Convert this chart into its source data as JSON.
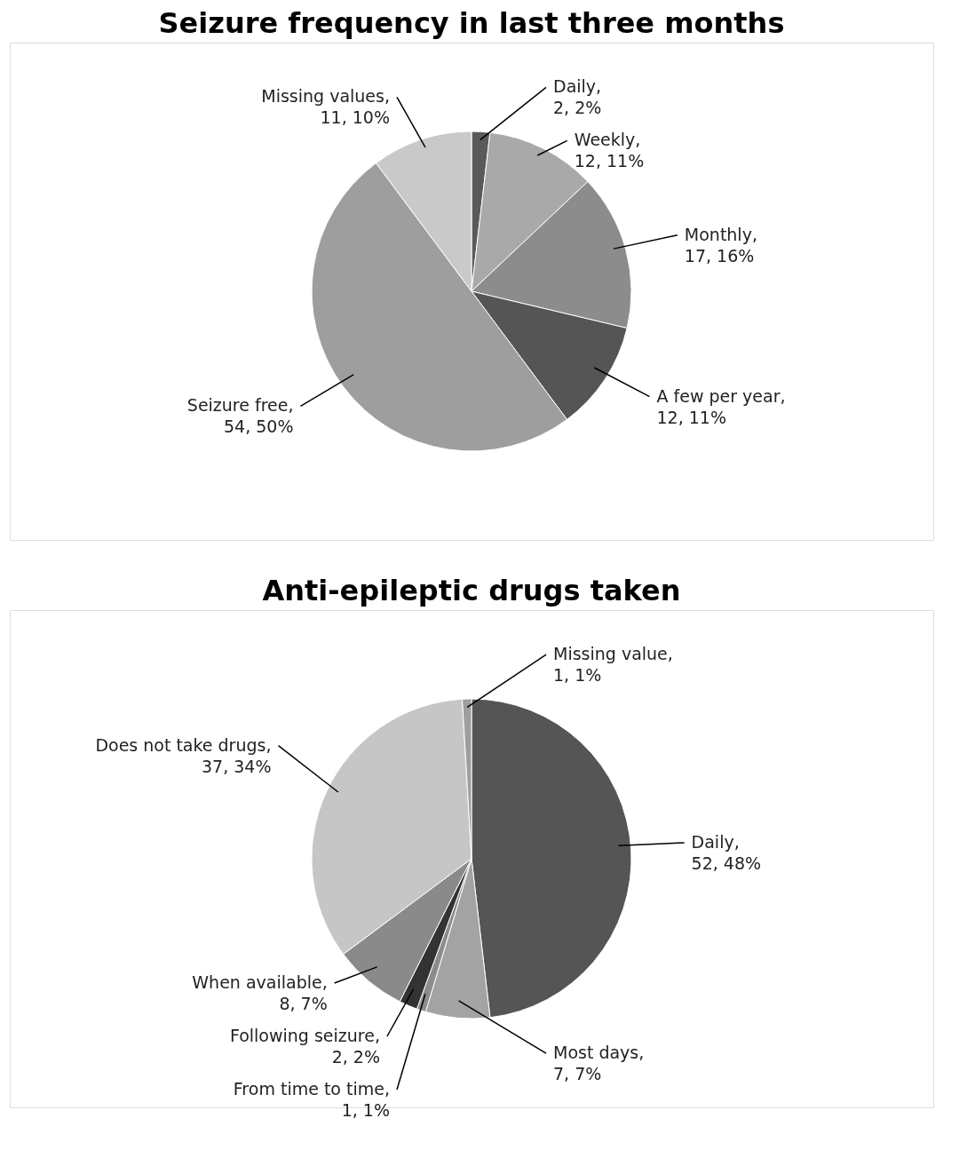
{
  "chart_data": [
    {
      "type": "pie",
      "title": "Seizure frequency in last three months",
      "categories": [
        "Daily, 2, 2%",
        "Weekly, 12, 11%",
        "Monthly, 17, 16%",
        "A few per year, 12, 11%",
        "Seizure free, 54, 50%",
        "Missing values, 11, 10%"
      ],
      "values": [
        2,
        12,
        17,
        12,
        54,
        11
      ],
      "colors": [
        "#5a5a5a",
        "#a9a9a9",
        "#8c8c8c",
        "#555555",
        "#9e9e9e",
        "#c9c9c9"
      ]
    },
    {
      "type": "pie",
      "title": "Anti-epileptic drugs taken",
      "categories": [
        "Daily, 52, 48%",
        "Most days, 7, 7%",
        "From time to time, 1, 1%",
        "Following seizure, 2, 2%",
        "When available, 8, 7%",
        "Does not take drugs, 37, 34%",
        "Missing value, 1, 1%"
      ],
      "values": [
        52,
        7,
        1,
        2,
        8,
        37,
        1
      ],
      "colors": [
        "#555555",
        "#a3a3a3",
        "#8c8c8c",
        "#333333",
        "#8a8a8a",
        "#c6c6c6",
        "#9e9e9e"
      ]
    }
  ]
}
